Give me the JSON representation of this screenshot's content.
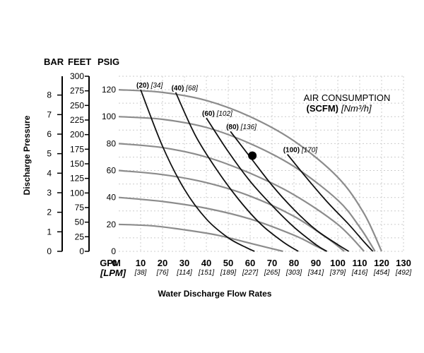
{
  "chart_data": {
    "type": "line",
    "unit_headers": {
      "bar": "BAR",
      "feet": "FEET",
      "psig": "PSIG"
    },
    "ylabel": "Discharge Pressure",
    "xlabel": "Water Discharge Flow Rates",
    "x_unit_gpm": "GPM",
    "x_unit_lpm": "[LPM]",
    "x_ticks_gpm": [
      "0",
      "10",
      "20",
      "30",
      "40",
      "50",
      "60",
      "70",
      "80",
      "90",
      "100",
      "110",
      "120",
      "130"
    ],
    "x_ticks_lpm": [
      "[38]",
      "[76]",
      "[114]",
      "[151]",
      "[189]",
      "[227]",
      "[265]",
      "[303]",
      "[341]",
      "[379]",
      "[416]",
      "[454]",
      "[492]"
    ],
    "xlim": [
      0,
      130
    ],
    "ylim_psig": [
      0,
      130
    ],
    "psig_ticks": [
      "0",
      "20",
      "40",
      "60",
      "80",
      "100",
      "120"
    ],
    "feet_ticks": [
      "0",
      "25",
      "50",
      "75",
      "100",
      "125",
      "150",
      "175",
      "200",
      "225",
      "250",
      "275",
      "300"
    ],
    "bar_ticks": [
      "0",
      "1",
      "2",
      "3",
      "4",
      "5",
      "6",
      "7",
      "8"
    ],
    "legend": {
      "title": "AIR CONSUMPTION",
      "unit_bold": "(SCFM)",
      "unit_italic": "[Nm³/h]"
    },
    "air_curves": [
      {
        "scfm": "(20)",
        "nm3h": "[34]",
        "points": [
          [
            10,
            120
          ],
          [
            20,
            78
          ],
          [
            30,
            46
          ],
          [
            40,
            24
          ],
          [
            50,
            10
          ],
          [
            58,
            3
          ],
          [
            62,
            0
          ]
        ]
      },
      {
        "scfm": "(40)",
        "nm3h": "[68]",
        "points": [
          [
            26,
            118
          ],
          [
            35,
            86
          ],
          [
            45,
            60
          ],
          [
            55,
            38
          ],
          [
            65,
            20
          ],
          [
            75,
            7
          ],
          [
            82,
            0
          ]
        ]
      },
      {
        "scfm": "(60)",
        "nm3h": "[102]",
        "points": [
          [
            40,
            99
          ],
          [
            50,
            74
          ],
          [
            60,
            52
          ],
          [
            70,
            34
          ],
          [
            80,
            18
          ],
          [
            90,
            5
          ],
          [
            95,
            0
          ]
        ]
      },
      {
        "scfm": "(80)",
        "nm3h": "[136]",
        "points": [
          [
            51,
            89
          ],
          [
            60,
            70
          ],
          [
            70,
            49
          ],
          [
            80,
            31
          ],
          [
            90,
            16
          ],
          [
            100,
            5
          ],
          [
            105,
            0
          ]
        ]
      },
      {
        "scfm": "(100)",
        "nm3h": "[170]",
        "points": [
          [
            77,
            72
          ],
          [
            85,
            56
          ],
          [
            95,
            37
          ],
          [
            105,
            20
          ],
          [
            112,
            7
          ],
          [
            116,
            0
          ]
        ]
      }
    ],
    "pressure_curves": [
      {
        "points": [
          [
            0,
            120
          ],
          [
            20,
            118
          ],
          [
            40,
            112
          ],
          [
            60,
            100
          ],
          [
            80,
            82
          ],
          [
            100,
            55
          ],
          [
            112,
            28
          ],
          [
            120,
            0
          ]
        ]
      },
      {
        "points": [
          [
            0,
            100
          ],
          [
            20,
            98
          ],
          [
            40,
            92
          ],
          [
            60,
            80
          ],
          [
            80,
            63
          ],
          [
            100,
            38
          ],
          [
            110,
            18
          ],
          [
            117,
            0
          ]
        ]
      },
      {
        "points": [
          [
            0,
            80
          ],
          [
            20,
            77
          ],
          [
            40,
            70
          ],
          [
            60,
            58
          ],
          [
            80,
            42
          ],
          [
            100,
            20
          ],
          [
            112,
            0
          ]
        ]
      },
      {
        "points": [
          [
            0,
            60
          ],
          [
            20,
            57
          ],
          [
            40,
            51
          ],
          [
            60,
            41
          ],
          [
            80,
            26
          ],
          [
            95,
            10
          ],
          [
            103,
            0
          ]
        ]
      },
      {
        "points": [
          [
            0,
            40
          ],
          [
            20,
            37
          ],
          [
            40,
            32
          ],
          [
            60,
            24
          ],
          [
            80,
            12
          ],
          [
            90,
            4
          ],
          [
            95,
            0
          ]
        ]
      },
      {
        "points": [
          [
            0,
            20
          ],
          [
            15,
            19
          ],
          [
            30,
            16
          ],
          [
            45,
            12
          ],
          [
            60,
            6
          ],
          [
            70,
            2
          ],
          [
            75,
            0
          ]
        ]
      }
    ],
    "marker": {
      "x": 61,
      "y": 71
    },
    "colors": {
      "air_curve": "#111111",
      "pressure_curve": "#8c8c8c",
      "grid": "#cccccc",
      "marker": "#000000"
    }
  }
}
